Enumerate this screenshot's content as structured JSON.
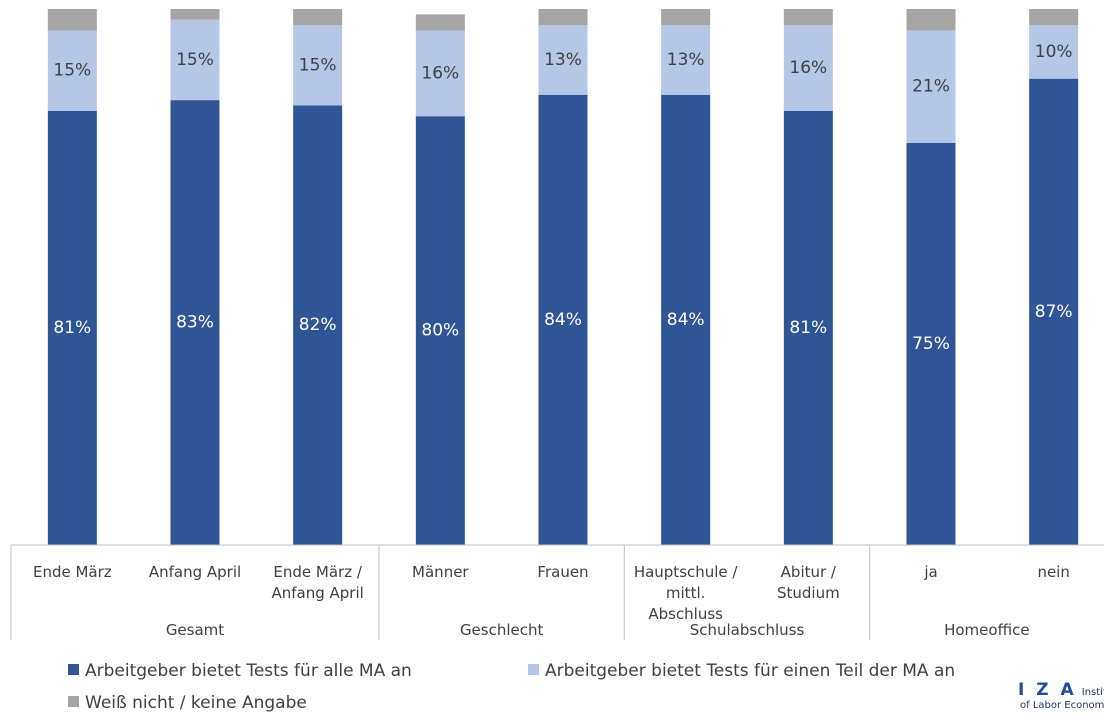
{
  "chart_data": {
    "type": "stacked_bar",
    "groups": [
      {
        "name": "Gesamt",
        "categories": [
          "Ende März",
          "Anfang April",
          "Ende März / Anfang April"
        ]
      },
      {
        "name": "Geschlecht",
        "categories": [
          "Männer",
          "Frauen"
        ]
      },
      {
        "name": "Schulabschluss",
        "categories": [
          "Hauptschule / mittl. Abschluss",
          "Abitur / Studium"
        ]
      },
      {
        "name": "Homeoffice",
        "categories": [
          "ja",
          "nein"
        ]
      }
    ],
    "series": [
      {
        "name": "Arbeitgeber bietet Tests für alle MA an",
        "color": "#2f5597",
        "label_color": "#ffffff",
        "values": [
          81,
          83,
          82,
          80,
          84,
          84,
          81,
          75,
          87
        ],
        "value_labels": [
          "81%",
          "83%",
          "82%",
          "80%",
          "84%",
          "84%",
          "81%",
          "75%",
          "87%"
        ]
      },
      {
        "name": "Arbeitgeber bietet Tests für einen Teil der MA an",
        "color": "#b4c7e7",
        "label_color": "#404040",
        "values": [
          15,
          15,
          15,
          16,
          13,
          13,
          16,
          21,
          10
        ],
        "value_labels": [
          "15%",
          "15%",
          "15%",
          "16%",
          "13%",
          "13%",
          "16%",
          "21%",
          "10%"
        ]
      },
      {
        "name": "Weiß nicht / keine Angabe",
        "color": "#a5a5a5",
        "values": [
          4,
          2,
          3,
          3,
          3,
          3,
          3,
          4,
          3
        ]
      }
    ],
    "ylim": [
      0,
      100
    ]
  },
  "logo": {
    "mark": "I Z A",
    "line1": "Institute",
    "line2": "of Labor Economics"
  }
}
